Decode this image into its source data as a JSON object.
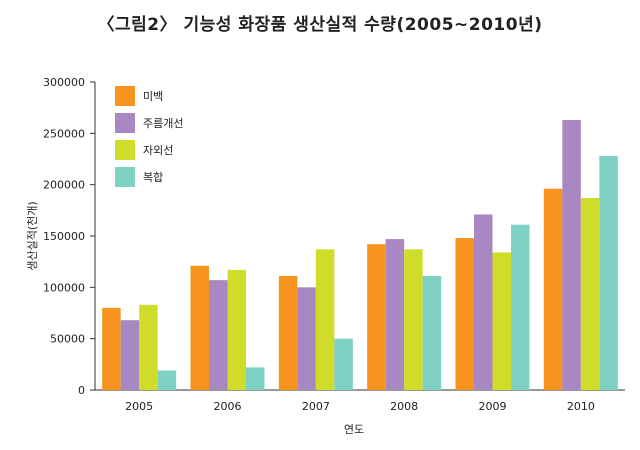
{
  "chart_data": {
    "type": "bar",
    "title": "〈그림2〉 기능성 화장품 생산실적 수량(2005~2010년)",
    "xlabel": "연도",
    "ylabel": "생산실적(천개)",
    "categories": [
      "2005",
      "2006",
      "2007",
      "2008",
      "2009",
      "2010"
    ],
    "ylim": [
      0,
      300000
    ],
    "yticks": [
      0,
      50000,
      100000,
      150000,
      200000,
      250000,
      300000
    ],
    "ytick_labels": [
      "0",
      "50000",
      "100000",
      "150000",
      "200000",
      "250000",
      "300000"
    ],
    "grid": false,
    "legend_position": "top-left",
    "series": [
      {
        "name": "미백",
        "color": "#f7941d",
        "values": [
          80000,
          121000,
          111000,
          142000,
          148000,
          196000
        ]
      },
      {
        "name": "주름개선",
        "color": "#a987c3",
        "values": [
          68000,
          107000,
          100000,
          147000,
          171000,
          263000
        ]
      },
      {
        "name": "자외선",
        "color": "#cfdc2a",
        "values": [
          83000,
          117000,
          137000,
          137000,
          134000,
          187000
        ]
      },
      {
        "name": "복합",
        "color": "#7fd1c3",
        "values": [
          19000,
          22000,
          50000,
          111000,
          161000,
          228000
        ]
      }
    ]
  }
}
